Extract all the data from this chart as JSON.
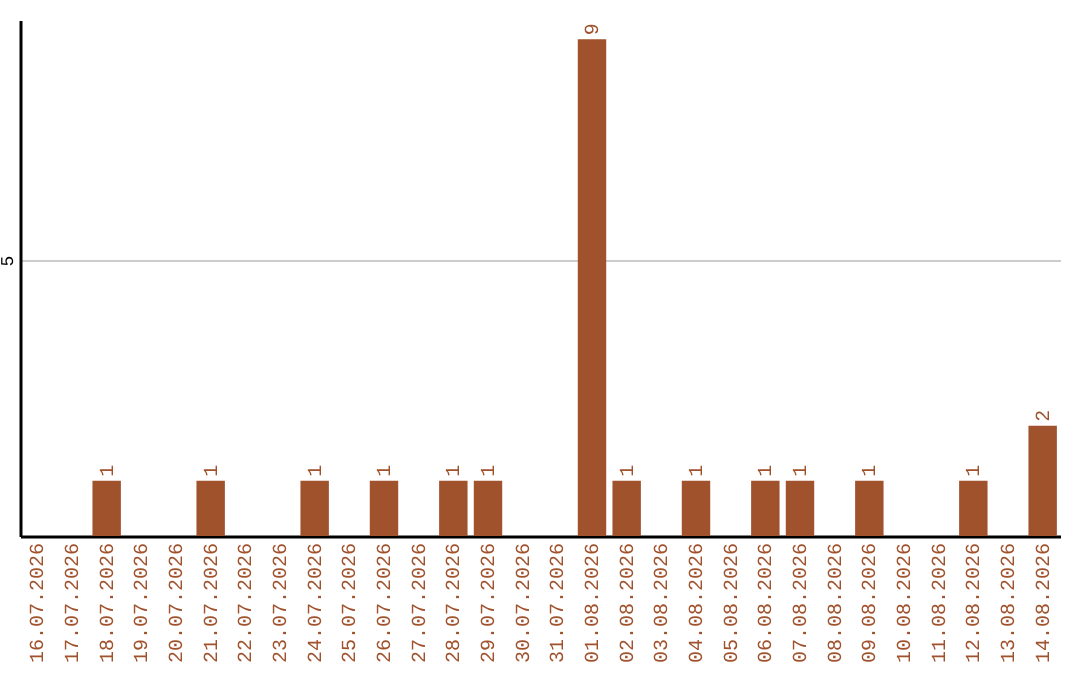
{
  "chart_data": {
    "type": "bar",
    "categories": [
      "16.07.2026",
      "17.07.2026",
      "18.07.2026",
      "19.07.2026",
      "20.07.2026",
      "21.07.2026",
      "22.07.2026",
      "23.07.2026",
      "24.07.2026",
      "25.07.2026",
      "26.07.2026",
      "27.07.2026",
      "28.07.2026",
      "29.07.2026",
      "30.07.2026",
      "31.07.2026",
      "01.08.2026",
      "02.08.2026",
      "03.08.2026",
      "04.08.2026",
      "05.08.2026",
      "06.08.2026",
      "07.08.2026",
      "08.08.2026",
      "09.08.2026",
      "10.08.2026",
      "11.08.2026",
      "12.08.2026",
      "13.08.2026",
      "14.08.2026"
    ],
    "values": [
      0,
      0,
      1,
      0,
      0,
      1,
      0,
      0,
      1,
      0,
      1,
      0,
      1,
      1,
      0,
      0,
      9,
      1,
      0,
      1,
      0,
      1,
      1,
      0,
      1,
      0,
      0,
      1,
      0,
      2
    ],
    "value_labels": [
      null,
      null,
      "1",
      null,
      null,
      "1",
      null,
      null,
      "1",
      null,
      "1",
      null,
      "1",
      "1",
      null,
      null,
      "9",
      "1",
      null,
      "1",
      null,
      "1",
      "1",
      null,
      "1",
      null,
      null,
      "1",
      null,
      "2"
    ],
    "color": "#a0522d",
    "ylim": [
      0,
      9.35
    ],
    "yticks": [
      5
    ],
    "grid": "y"
  }
}
